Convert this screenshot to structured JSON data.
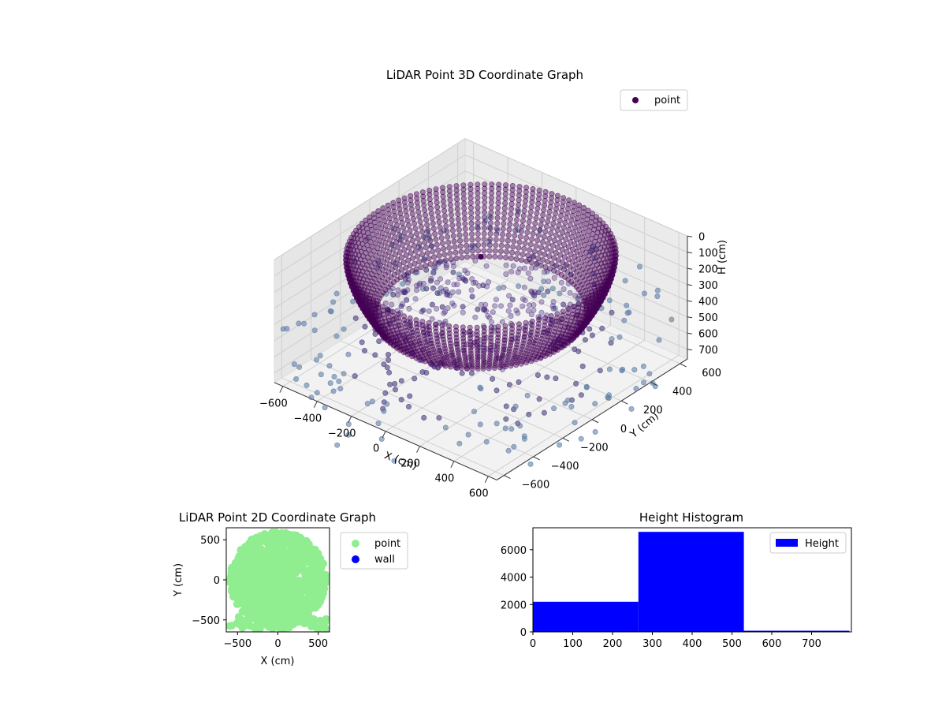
{
  "chart_data": [
    {
      "type": "scatter",
      "projection": "3d",
      "title": "LiDAR Point 3D Coordinate Graph",
      "xlabel": "X (cm)",
      "ylabel": "Y (cm)",
      "zlabel": "H (cm)",
      "xlim": [
        -650,
        650
      ],
      "ylim": [
        -650,
        650
      ],
      "zlim": [
        760,
        0
      ],
      "z_inverted": true,
      "xticks": [
        "−600",
        "−400",
        "−200",
        "0",
        "200",
        "400",
        "600"
      ],
      "yticks": [
        "−600",
        "−400",
        "−200",
        "0",
        "200",
        "400",
        "600"
      ],
      "zticks": [
        "0",
        "100",
        "200",
        "300",
        "400",
        "500",
        "600",
        "700"
      ],
      "grid": true,
      "legend_position": "upper right",
      "series": [
        {
          "name": "point",
          "color": "#440154",
          "shape": "bowl",
          "rim_radius": 600,
          "rim_height": 50,
          "floor_height": 400,
          "floor_radius": 470,
          "outlier_radius_range": [
            400,
            900
          ],
          "outlier_height_range": [
            400,
            760
          ]
        }
      ]
    },
    {
      "type": "scatter",
      "title": "LiDAR Point 2D Coordinate Graph",
      "xlabel": "X (cm)",
      "ylabel": "Y (cm)",
      "xlim": [
        -640,
        640
      ],
      "ylim": [
        -650,
        650
      ],
      "xticks": [
        "−500",
        "0",
        "500"
      ],
      "yticks": [
        "−500",
        "0",
        "500"
      ],
      "legend_position": "outside right",
      "series": [
        {
          "name": "point",
          "color": "#90ee90",
          "shape": "disk",
          "radius": 600
        },
        {
          "name": "wall",
          "color": "#0000ff",
          "shape": "none"
        }
      ]
    },
    {
      "type": "bar",
      "title": "Height Histogram",
      "xlim": [
        0,
        800
      ],
      "ylim": [
        0,
        7600
      ],
      "xticks": [
        "0",
        "100",
        "200",
        "300",
        "400",
        "500",
        "600",
        "700"
      ],
      "yticks": [
        "0",
        "2000",
        "4000",
        "6000"
      ],
      "bin_edges": [
        0,
        265,
        530,
        795
      ],
      "values": [
        2200,
        7300,
        30
      ],
      "legend_position": "upper right",
      "series": [
        {
          "name": "Height",
          "color": "#0000ff"
        }
      ]
    }
  ]
}
